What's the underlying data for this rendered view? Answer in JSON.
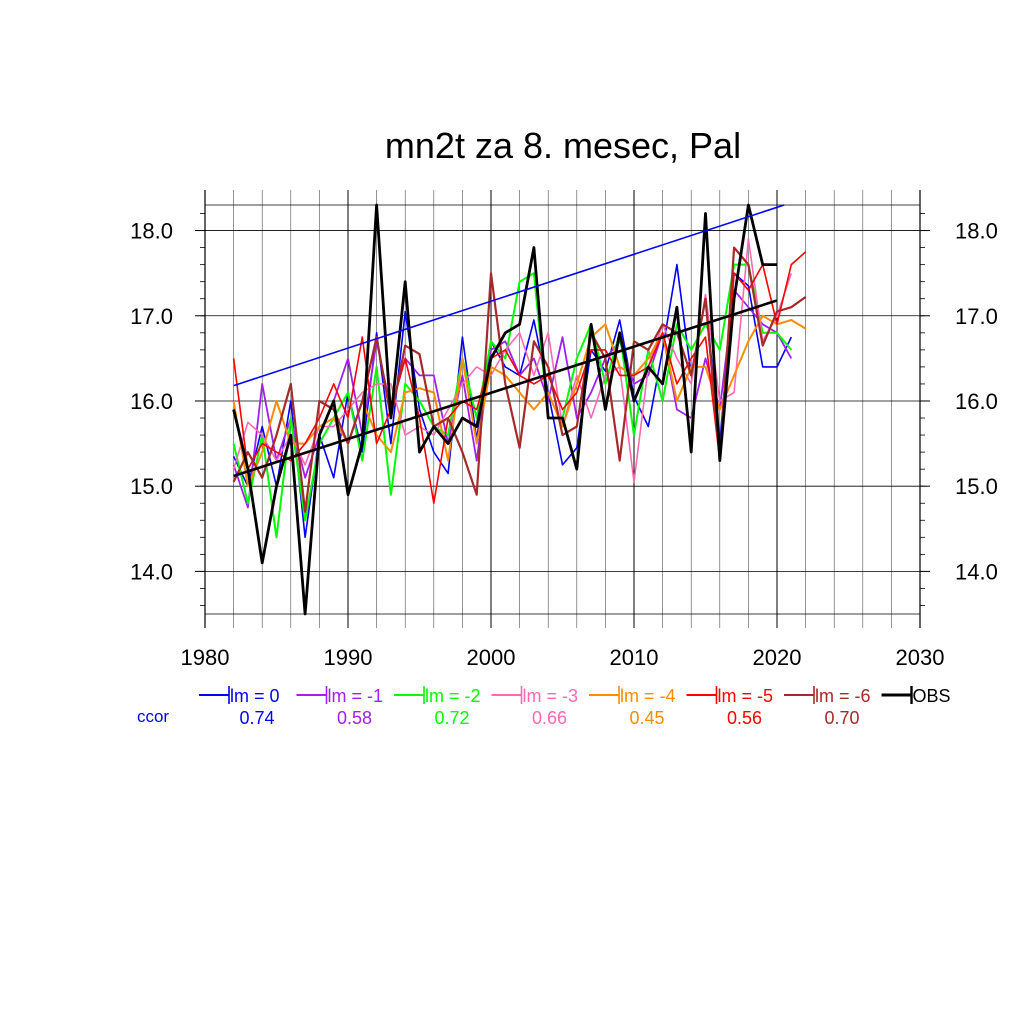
{
  "chart_data": {
    "type": "line",
    "title": "mn2t za 8. mesec, Pal",
    "xlabel": "",
    "ylabel": "",
    "xlim": [
      1980,
      2030
    ],
    "ylim": [
      13.5,
      18.3
    ],
    "xticks": [
      1980,
      1990,
      2000,
      2010,
      2020,
      2030
    ],
    "xtick_labels": [
      "1980",
      "1990",
      "2000",
      "2010",
      "2020",
      "2030"
    ],
    "yticks": [
      14.0,
      15.0,
      16.0,
      17.0,
      18.0
    ],
    "ytick_labels": [
      "14.0",
      "15.0",
      "16.0",
      "17.0",
      "18.0"
    ],
    "grid": true,
    "legend_position": "bottom",
    "ccor_label": "ccor",
    "series": [
      {
        "name": "lm = 0",
        "ccor": "0.74",
        "color": "#0000ff",
        "width": 1.6,
        "x_start": 1982,
        "values": [
          15.35,
          15.0,
          15.7,
          15.0,
          16.0,
          14.4,
          15.6,
          15.1,
          16.1,
          15.4,
          16.8,
          15.5,
          17.05,
          15.9,
          15.4,
          15.15,
          16.75,
          15.55,
          16.7,
          16.4,
          16.3,
          16.95,
          16.1,
          15.25,
          15.45,
          16.6,
          16.35,
          16.95,
          16.05,
          15.7,
          16.6,
          17.6,
          16.3,
          17.2,
          15.5,
          17.5,
          17.35,
          16.4,
          16.4,
          16.75
        ]
      },
      {
        "name": "lm = -1",
        "ccor": "0.58",
        "color": "#a020f0",
        "width": 1.8,
        "x_start": 1982,
        "values": [
          15.25,
          14.75,
          16.2,
          15.3,
          15.8,
          15.1,
          15.6,
          16.0,
          16.5,
          15.6,
          16.7,
          15.9,
          16.5,
          16.3,
          16.3,
          15.5,
          16.3,
          15.3,
          16.6,
          16.7,
          16.3,
          16.5,
          16.0,
          16.75,
          15.8,
          16.1,
          16.5,
          16.7,
          16.2,
          16.3,
          16.8,
          15.9,
          15.8,
          16.5,
          15.9,
          17.3,
          17.1,
          16.9,
          16.8,
          16.5
        ]
      },
      {
        "name": "lm = -2",
        "ccor": "0.72",
        "color": "#00ff00",
        "width": 2.0,
        "x_start": 1982,
        "values": [
          15.5,
          14.8,
          15.6,
          14.4,
          15.8,
          14.6,
          15.5,
          15.8,
          16.1,
          15.3,
          16.4,
          14.9,
          16.2,
          16.0,
          15.7,
          15.6,
          16.5,
          15.8,
          16.7,
          16.5,
          17.4,
          17.5,
          15.8,
          15.8,
          16.5,
          16.9,
          16.2,
          16.8,
          15.6,
          16.6,
          16.0,
          16.9,
          16.6,
          16.9,
          16.6,
          17.6,
          17.6,
          16.8,
          16.8,
          16.6
        ]
      },
      {
        "name": "lm = -3",
        "ccor": "0.66",
        "color": "#ff69b4",
        "width": 1.6,
        "x_start": 1982,
        "values": [
          15.2,
          15.75,
          15.6,
          15.3,
          15.6,
          15.25,
          15.7,
          15.7,
          15.9,
          16.1,
          16.2,
          16.2,
          15.6,
          15.7,
          15.6,
          15.9,
          16.2,
          16.4,
          16.3,
          16.6,
          16.8,
          16.3,
          16.8,
          15.7,
          16.3,
          15.8,
          16.3,
          16.4,
          15.05,
          16.4,
          16.9,
          16.5,
          16.2,
          17.25,
          16.0,
          16.1,
          17.9,
          16.7,
          17.0,
          17.5
        ]
      },
      {
        "name": "lm = -4",
        "ccor": "0.45",
        "color": "#ff8c00",
        "width": 2.0,
        "x_start": 1982,
        "values": [
          16.0,
          15.0,
          15.4,
          16.0,
          15.5,
          15.5,
          15.7,
          15.8,
          15.5,
          16.0,
          15.6,
          15.4,
          16.1,
          16.15,
          16.1,
          15.3,
          16.5,
          15.5,
          16.4,
          16.3,
          16.1,
          15.9,
          16.1,
          15.7,
          16.2,
          16.75,
          16.9,
          16.4,
          16.3,
          16.5,
          16.8,
          16.0,
          16.4,
          16.4,
          15.9,
          16.3,
          16.7,
          17.0,
          16.9,
          16.95,
          16.85
        ]
      },
      {
        "name": "lm = -5",
        "ccor": "0.56",
        "color": "#ff0000",
        "width": 1.6,
        "x_start": 1982,
        "values": [
          16.5,
          15.2,
          15.5,
          15.4,
          15.3,
          15.5,
          15.8,
          16.2,
          15.8,
          16.75,
          15.5,
          15.9,
          16.5,
          15.8,
          14.8,
          15.8,
          16.0,
          15.9,
          16.5,
          16.6,
          16.3,
          16.2,
          16.3,
          15.9,
          16.1,
          16.6,
          16.6,
          16.3,
          16.3,
          16.4,
          16.8,
          16.2,
          16.5,
          16.75,
          15.3,
          17.5,
          17.3,
          17.6,
          16.9,
          17.6,
          17.75
        ]
      },
      {
        "name": "lm = -6",
        "ccor": "0.70",
        "color": "#a52a2a",
        "width": 2.2,
        "x_start": 1982,
        "values": [
          15.05,
          15.4,
          15.1,
          15.6,
          16.2,
          14.7,
          16.0,
          15.9,
          15.5,
          16.0,
          16.75,
          15.8,
          16.65,
          16.55,
          15.7,
          15.8,
          15.4,
          14.9,
          17.5,
          16.2,
          15.45,
          16.7,
          16.4,
          15.6,
          15.7,
          16.8,
          16.5,
          15.3,
          16.7,
          16.6,
          16.9,
          16.8,
          16.3,
          17.2,
          15.3,
          17.8,
          17.6,
          16.65,
          17.05,
          17.1,
          17.22
        ]
      },
      {
        "name": "OBS",
        "ccor": "",
        "color": "#000000",
        "width": 2.8,
        "x_start": 1982,
        "values": [
          15.9,
          15.2,
          14.1,
          15.0,
          15.6,
          13.5,
          15.6,
          16.0,
          14.9,
          15.5,
          18.3,
          15.8,
          17.4,
          15.4,
          15.7,
          15.5,
          15.8,
          15.7,
          16.5,
          16.8,
          16.9,
          17.8,
          15.8,
          15.8,
          15.2,
          16.9,
          15.9,
          16.8,
          16.0,
          16.4,
          16.2,
          17.1,
          15.4,
          18.2,
          15.3,
          17.2,
          18.3,
          17.6,
          17.6
        ]
      }
    ],
    "trend_lines": [
      {
        "name": "obs-trend",
        "color": "#000000",
        "width": 2.6,
        "x": [
          1982,
          2020
        ],
        "y": [
          15.12,
          17.18
        ]
      },
      {
        "name": "upper-trend",
        "color": "#0000ff",
        "width": 1.6,
        "x": [
          1982,
          2020.5
        ],
        "y": [
          16.18,
          18.3
        ]
      }
    ]
  }
}
